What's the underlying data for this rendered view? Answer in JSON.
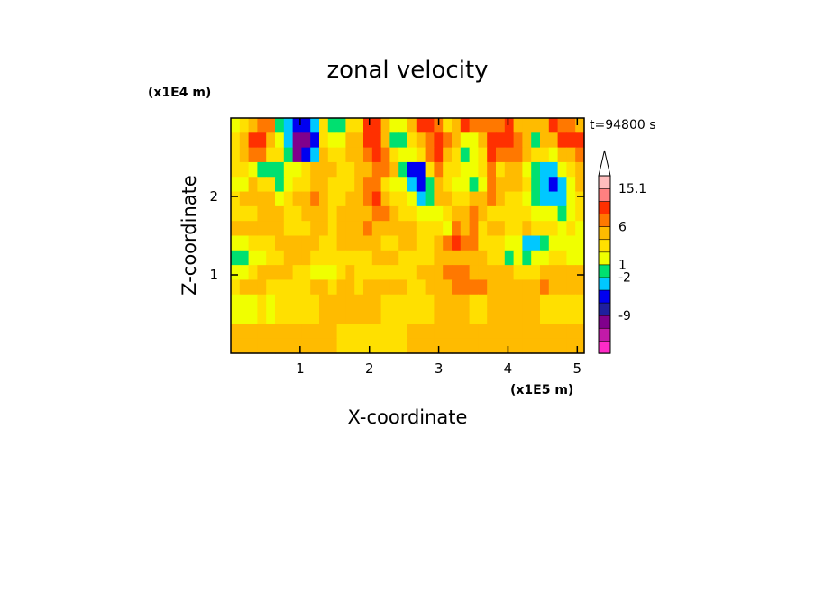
{
  "chart_data": {
    "type": "heatmap",
    "title": "zonal velocity",
    "xlabel": "X-coordinate",
    "ylabel": "Z-coordinate",
    "x_unit": "(x1E5 m)",
    "y_unit": "(x1E4 m)",
    "time_label": "t=94800 s",
    "xlim": [
      0.0,
      5.1
    ],
    "ylim": [
      0.0,
      3.0
    ],
    "x_ticks": [
      "1",
      "2",
      "3",
      "4",
      "5"
    ],
    "x_tick_values": [
      1,
      2,
      3,
      4,
      5
    ],
    "y_ticks": [
      "1",
      "2"
    ],
    "y_tick_values": [
      1,
      2
    ],
    "colorbar": {
      "levels": [
        "15.1",
        "6",
        "1",
        "-2",
        "-9"
      ],
      "colors": [
        "#ff2bc7",
        "#c21aa8",
        "#80008c",
        "#1f1f9e",
        "#0000f0",
        "#00c8ff",
        "#00e070",
        "#f0ff00",
        "#ffe000",
        "#ffbb00",
        "#ff7800",
        "#ff3000",
        "#ff8080",
        "#ffbdbd"
      ],
      "extend_top_color": "#ffffff"
    },
    "field": {
      "colormap": [
        "#c21aa8",
        "#80008c",
        "#0000f0",
        "#00c8ff",
        "#00e070",
        "#f0ff00",
        "#ffe000",
        "#ffbb00",
        "#ff7800",
        "#ff3000"
      ],
      "rows": [
        "5678843223644669975579986798888977779887",
        "6799753112655779974467898755799987477999",
        "6788664123766778986556897645698887665778",
        "6654445567776677887422686655686775433567",
        "5576645667766678865532476554587776432357",
        "6777756778766778976653477667787665433356",
        "6667776677767777887665556778766666555456",
        "7777776667767778777776665878677667666565",
        "5566677777667777766776678988666553345555",
        "4455667776666666777666677777766454556655",
        "5567777665556766666667778887777766677777",
        "6777666667767767777766777888877777787777",
        "5556566666777777766666677776677777766666",
        "5556566666777777766666677776677777766666",
        "7777777777776666666677777777777777777777",
        "7777777777776666666677777777777777777777"
      ]
    }
  }
}
